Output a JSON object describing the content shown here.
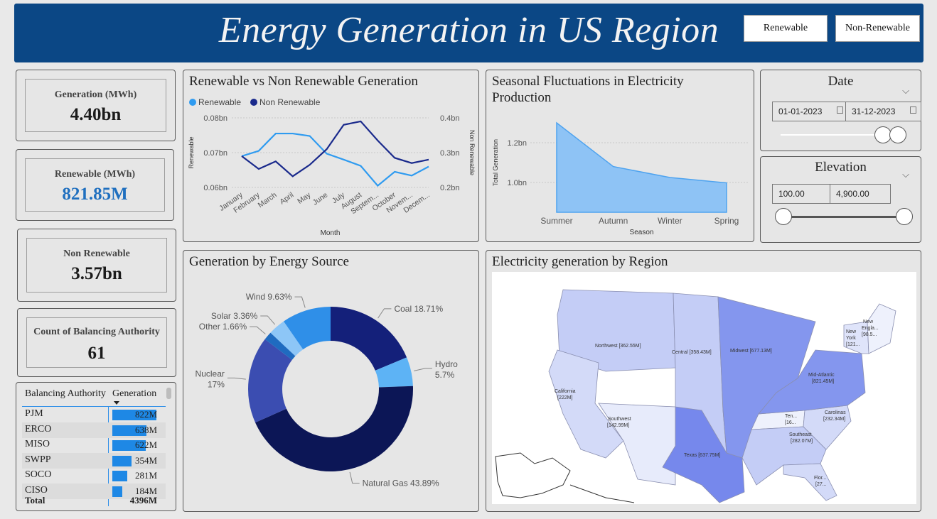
{
  "header": {
    "title": "Energy Generation in US Region",
    "buttons": [
      "Renewable",
      "Non-Renewable"
    ]
  },
  "kpis": [
    {
      "label": "Generation (MWh)",
      "value": "4.40bn",
      "color": "#1b1b1b"
    },
    {
      "label": "Renewable (MWh)",
      "value": "821.85M",
      "color": "#1f6fbf"
    },
    {
      "label": "Non Renewable",
      "value": "3.57bn",
      "color": "#1b1b1b"
    },
    {
      "label": "Count of Balancing Authority",
      "value": "61",
      "color": "#1b1b1b"
    }
  ],
  "table": {
    "headers": [
      "Balancing Authority",
      "Generation"
    ],
    "rows": [
      {
        "name": "PJM",
        "value": "822M",
        "amount": 822
      },
      {
        "name": "ERCO",
        "value": "638M",
        "amount": 638
      },
      {
        "name": "MISO",
        "value": "622M",
        "amount": 622
      },
      {
        "name": "SWPP",
        "value": "354M",
        "amount": 354
      },
      {
        "name": "SOCO",
        "value": "281M",
        "amount": 281
      },
      {
        "name": "CISO",
        "value": "184M",
        "amount": 184
      }
    ],
    "total_label": "Total",
    "total_value": "4396M",
    "bar_color": "#1e88e5"
  },
  "line_panel": {
    "title": "Renewable vs Non Renewable Generation"
  },
  "area_panel": {
    "title_line1": "Seasonal Fluctuations in Electricity",
    "title_line2": "Production"
  },
  "donut_panel": {
    "title": "Generation by Energy Source"
  },
  "map_panel": {
    "title": "Electricity generation by Region",
    "regions": [
      {
        "name": "Northwest",
        "label": "Northwest [362.55M]"
      },
      {
        "name": "Central",
        "label": "Central [358.43M]"
      },
      {
        "name": "Midwest",
        "label": "Midwest [677.13M]"
      },
      {
        "name": "California",
        "label_line1": "California",
        "label_line2": "[222M]"
      },
      {
        "name": "Southwest",
        "label_line1": "Southwest",
        "label_line2": "[142.99M]"
      },
      {
        "name": "Texas",
        "label": "Texas [637.75M]"
      },
      {
        "name": "Mid-Atlantic",
        "label_line1": "Mid-Atlantic",
        "label_line2": "[821.45M]"
      },
      {
        "name": "Carolinas",
        "label_line1": "Carolinas",
        "label_line2": "[232.34M]"
      },
      {
        "name": "Southeast",
        "label_line1": "Southeast",
        "label_line2": "[282.07M]"
      },
      {
        "name": "Tennessee",
        "label_line1": "Ten...",
        "label_line2": "[16..."
      },
      {
        "name": "New York",
        "label_line1": "New",
        "label_line2": "York",
        "label_line3": "[121..."
      },
      {
        "name": "New England",
        "label_line1": "New",
        "label_line2": "Engla...",
        "label_line3": "[98.5..."
      },
      {
        "name": "Florida",
        "label_line1": "Flor...",
        "label_line2": "[27..."
      }
    ]
  },
  "date_slicer": {
    "title": "Date",
    "start": "01-01-2023",
    "end": "31-12-2023",
    "handle_start": 0.82,
    "handle_end": 0.94
  },
  "elevation_slicer": {
    "title": "Elevation",
    "min": "100.00",
    "max": "4,900.00",
    "handle_start": 0.0,
    "handle_end": 1.0
  },
  "chart_data": [
    {
      "type": "line",
      "title": "Renewable vs Non Renewable Generation",
      "xlabel": "Month",
      "ylabel": "Renewable",
      "y2label": "Non Renewable",
      "categories": [
        "January",
        "February",
        "March",
        "April",
        "May",
        "June",
        "July",
        "August",
        "Septem...",
        "October",
        "Novem...",
        "Decem..."
      ],
      "ylim": [
        0.06,
        0.08
      ],
      "y_ticks": [
        "0.06bn",
        "0.07bn",
        "0.08bn"
      ],
      "y2lim": [
        0.2,
        0.4
      ],
      "y2_ticks": [
        "0.2bn",
        "0.3bn",
        "0.4bn"
      ],
      "series": [
        {
          "name": "Renewable",
          "axis": "left",
          "color": "#2f9bf0",
          "values": [
            0.069,
            0.0705,
            0.0755,
            0.0755,
            0.0748,
            0.0697,
            0.068,
            0.0662,
            0.0605,
            0.0645,
            0.0634,
            0.066
          ]
        },
        {
          "name": "Non Renewable",
          "axis": "right",
          "color": "#1a2a8c",
          "values": [
            0.29,
            0.253,
            0.275,
            0.232,
            0.265,
            0.31,
            0.38,
            0.39,
            0.335,
            0.285,
            0.27,
            0.28
          ]
        }
      ],
      "legend": "top-left"
    },
    {
      "type": "area",
      "title": "Seasonal Fluctuations in Electricity Production",
      "xlabel": "Season",
      "ylabel": "Total Generation",
      "categories": [
        "Summer",
        "Autumn",
        "Winter",
        "Spring"
      ],
      "values": [
        1.3,
        1.08,
        1.025,
        0.998
      ],
      "y_ticks": [
        "1.0bn",
        "1.2bn"
      ],
      "ylim": [
        0.85,
        1.35
      ],
      "color": "#8ec3f5"
    },
    {
      "type": "pie",
      "title": "Generation by Energy Source",
      "slices": [
        {
          "label": "Coal",
          "value": 18.71,
          "text": "Coal 18.71%",
          "color": "#14207a"
        },
        {
          "label": "Hydro",
          "value": 5.7,
          "text_line1": "Hydro",
          "text_line2": "5.7%",
          "color": "#5db3f5"
        },
        {
          "label": "Natural Gas",
          "value": 43.89,
          "text": "Natural Gas 43.89%",
          "color": "#0c1656"
        },
        {
          "label": "Nuclear",
          "value": 17,
          "text_line1": "Nuclear",
          "text_line2": "17%",
          "color": "#3b4db1"
        },
        {
          "label": "Other",
          "value": 1.66,
          "text": "Other 1.66%",
          "color": "#1f6bc0"
        },
        {
          "label": "Solar",
          "value": 3.36,
          "text": "Solar 3.36%",
          "color": "#8dc6f7"
        },
        {
          "label": "Wind",
          "value": 9.63,
          "text": "Wind 9.63%",
          "color": "#2f8fe8"
        }
      ]
    }
  ]
}
